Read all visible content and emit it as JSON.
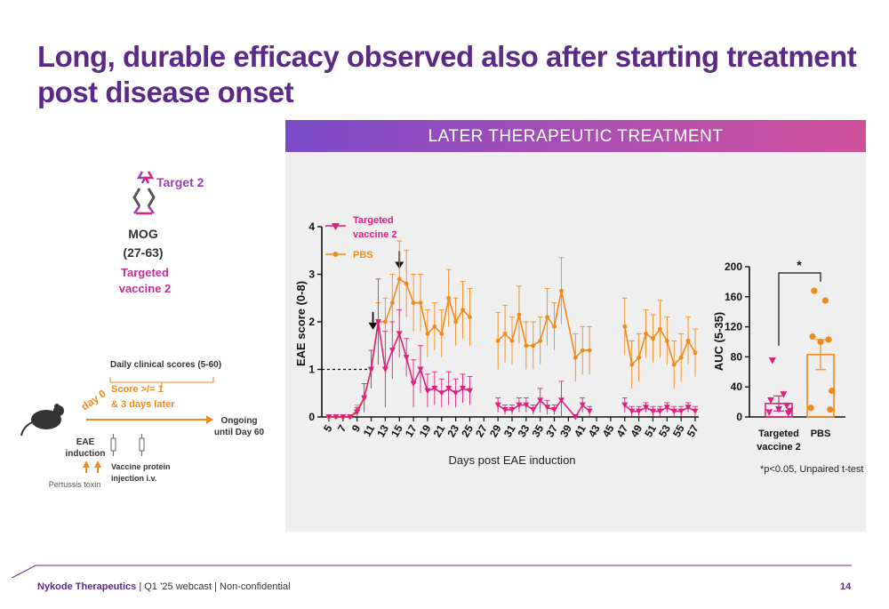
{
  "slide": {
    "title_line1": "Long, durable efficacy observed also after starting treatment",
    "title_line2": "post disease onset",
    "banner": "LATER THERAPEUTIC TREATMENT",
    "footer_company": "Nykode Therapeutics",
    "footer_rest": " | Q1 ’25 webcast | Non-confidential",
    "page_number": "14",
    "colors": {
      "title": "#5b2a86",
      "targeted": "#e0207f",
      "pbs": "#f28a1a",
      "accent": "#9b3fb0"
    }
  },
  "construct": {
    "target": "Target 2",
    "antigen": "MOG",
    "antigen_range": "(27-63)",
    "vaccine_line1": "Targeted",
    "vaccine_line2": "vaccine 2",
    "icon": "vaccine-construct-icon"
  },
  "timeline": {
    "daily_scores": "Daily clinical scores (5-60)",
    "day0": "day 0",
    "score_line1": "Score >/= 1",
    "score_line2": "& 3 days later",
    "ongoing_line1": "Ongoing",
    "ongoing_line2": "until Day 60",
    "eae_line1": "EAE",
    "eae_line2": "induction",
    "pertussis": "Pertussis toxin",
    "vaccine_line1": "Vaccine protein",
    "vaccine_line2": "injection i.v.",
    "mouse_icon": "mouse-icon",
    "syringe_icon": "syringe-icon"
  },
  "chart_data": [
    {
      "type": "line",
      "xlabel": "Days post EAE induction",
      "ylabel": "EAE score (0-8)",
      "ylim": [
        0,
        4
      ],
      "yticks": [
        "0",
        "1",
        "2",
        "3",
        "4"
      ],
      "xticks": [
        "5",
        "7",
        "9",
        "11",
        "13",
        "15",
        "17",
        "19",
        "21",
        "23",
        "25",
        "27",
        "29",
        "31",
        "33",
        "35",
        "37",
        "39",
        "41",
        "43",
        "45",
        "47",
        "49",
        "51",
        "53",
        "55",
        "57"
      ],
      "reference_line": 1,
      "treatment_arrows": [
        11,
        15
      ],
      "legend_placement": "top-left",
      "series": [
        {
          "name_line1": "Targeted",
          "name_line2": "vaccine 2",
          "color": "#e0207f",
          "marker": "triangle-down",
          "points": [
            {
              "x": 5,
              "y": 0,
              "err": 0
            },
            {
              "x": 6,
              "y": 0,
              "err": 0
            },
            {
              "x": 7,
              "y": 0,
              "err": 0
            },
            {
              "x": 8,
              "y": 0,
              "err": 0
            },
            {
              "x": 9,
              "y": 0.1,
              "err": 0.1
            },
            {
              "x": 10,
              "y": 0.4,
              "err": 0.3
            },
            {
              "x": 11,
              "y": 1.0,
              "err": 0.4
            },
            {
              "x": 12,
              "y": 2.0,
              "err": 0.9
            },
            {
              "x": 13,
              "y": 1.0,
              "err": 0.8
            },
            {
              "x": 14,
              "y": 1.4,
              "err": 0.6
            },
            {
              "x": 15,
              "y": 1.75,
              "err": 0.5
            },
            {
              "x": 16,
              "y": 1.25,
              "err": 0.4
            },
            {
              "x": 17,
              "y": 0.7,
              "err": 0.5
            },
            {
              "x": 18,
              "y": 1.0,
              "err": 0.5
            },
            {
              "x": 19,
              "y": 0.55,
              "err": 0.35
            },
            {
              "x": 20,
              "y": 0.6,
              "err": 0.35
            },
            {
              "x": 21,
              "y": 0.5,
              "err": 0.3
            },
            {
              "x": 22,
              "y": 0.6,
              "err": 0.35
            },
            {
              "x": 23,
              "y": 0.5,
              "err": 0.3
            },
            {
              "x": 24,
              "y": 0.6,
              "err": 0.3
            },
            {
              "x": 25,
              "y": 0.55,
              "err": 0.3
            },
            {
              "x": 29,
              "y": 0.25,
              "err": 0.15
            },
            {
              "x": 30,
              "y": 0.15,
              "err": 0.1
            },
            {
              "x": 31,
              "y": 0.15,
              "err": 0.1
            },
            {
              "x": 32,
              "y": 0.25,
              "err": 0.15
            },
            {
              "x": 33,
              "y": 0.25,
              "err": 0.15
            },
            {
              "x": 34,
              "y": 0.15,
              "err": 0.1
            },
            {
              "x": 35,
              "y": 0.35,
              "err": 0.25
            },
            {
              "x": 36,
              "y": 0.2,
              "err": 0.15
            },
            {
              "x": 37,
              "y": 0.15,
              "err": 0.1
            },
            {
              "x": 38,
              "y": 0.35,
              "err": 0.4
            },
            {
              "x": 40,
              "y": 0.0,
              "err": 0
            },
            {
              "x": 41,
              "y": 0.25,
              "err": 0.15
            },
            {
              "x": 42,
              "y": 0.12,
              "err": 0.1
            },
            {
              "x": 47,
              "y": 0.25,
              "err": 0.15
            },
            {
              "x": 48,
              "y": 0.12,
              "err": 0.1
            },
            {
              "x": 49,
              "y": 0.12,
              "err": 0.1
            },
            {
              "x": 50,
              "y": 0.2,
              "err": 0.1
            },
            {
              "x": 51,
              "y": 0.12,
              "err": 0.1
            },
            {
              "x": 52,
              "y": 0.12,
              "err": 0.1
            },
            {
              "x": 53,
              "y": 0.2,
              "err": 0.1
            },
            {
              "x": 54,
              "y": 0.12,
              "err": 0.1
            },
            {
              "x": 55,
              "y": 0.12,
              "err": 0.1
            },
            {
              "x": 56,
              "y": 0.2,
              "err": 0.1
            },
            {
              "x": 57,
              "y": 0.12,
              "err": 0.1
            }
          ]
        },
        {
          "name": "PBS",
          "color": "#f28a1a",
          "marker": "circle",
          "points": [
            {
              "x": 5,
              "y": 0,
              "err": 0
            },
            {
              "x": 6,
              "y": 0,
              "err": 0
            },
            {
              "x": 7,
              "y": 0,
              "err": 0
            },
            {
              "x": 8,
              "y": 0,
              "err": 0
            },
            {
              "x": 9,
              "y": 0.15,
              "err": 0.1
            },
            {
              "x": 10,
              "y": 0.4,
              "err": 0.3
            },
            {
              "x": 11,
              "y": 1.0,
              "err": 0.4
            },
            {
              "x": 12,
              "y": 2.0,
              "err": 0.4
            },
            {
              "x": 13,
              "y": 2.0,
              "err": 0.5
            },
            {
              "x": 14,
              "y": 2.4,
              "err": 0.6
            },
            {
              "x": 15,
              "y": 2.9,
              "err": 0.8
            },
            {
              "x": 16,
              "y": 2.8,
              "err": 0.7
            },
            {
              "x": 17,
              "y": 2.4,
              "err": 0.6
            },
            {
              "x": 18,
              "y": 2.4,
              "err": 0.6
            },
            {
              "x": 19,
              "y": 1.75,
              "err": 0.5
            },
            {
              "x": 20,
              "y": 1.9,
              "err": 0.5
            },
            {
              "x": 21,
              "y": 1.75,
              "err": 0.5
            },
            {
              "x": 22,
              "y": 2.5,
              "err": 0.6
            },
            {
              "x": 23,
              "y": 2.0,
              "err": 0.5
            },
            {
              "x": 24,
              "y": 2.25,
              "err": 0.6
            },
            {
              "x": 25,
              "y": 2.1,
              "err": 0.6
            },
            {
              "x": 29,
              "y": 1.6,
              "err": 0.6
            },
            {
              "x": 30,
              "y": 1.75,
              "err": 0.6
            },
            {
              "x": 31,
              "y": 1.6,
              "err": 0.5
            },
            {
              "x": 32,
              "y": 2.15,
              "err": 0.6
            },
            {
              "x": 33,
              "y": 1.5,
              "err": 0.5
            },
            {
              "x": 34,
              "y": 1.5,
              "err": 0.5
            },
            {
              "x": 35,
              "y": 1.6,
              "err": 0.5
            },
            {
              "x": 36,
              "y": 2.1,
              "err": 0.6
            },
            {
              "x": 37,
              "y": 1.9,
              "err": 0.5
            },
            {
              "x": 38,
              "y": 2.65,
              "err": 0.7
            },
            {
              "x": 40,
              "y": 1.25,
              "err": 0.5
            },
            {
              "x": 41,
              "y": 1.4,
              "err": 0.5
            },
            {
              "x": 42,
              "y": 1.4,
              "err": 0.5
            },
            {
              "x": 47,
              "y": 1.9,
              "err": 0.6
            },
            {
              "x": 48,
              "y": 1.1,
              "err": 0.5
            },
            {
              "x": 49,
              "y": 1.25,
              "err": 0.5
            },
            {
              "x": 50,
              "y": 1.75,
              "err": 0.5
            },
            {
              "x": 51,
              "y": 1.65,
              "err": 0.5
            },
            {
              "x": 52,
              "y": 1.85,
              "err": 0.6
            },
            {
              "x": 53,
              "y": 1.6,
              "err": 0.5
            },
            {
              "x": 54,
              "y": 1.1,
              "err": 0.5
            },
            {
              "x": 55,
              "y": 1.25,
              "err": 0.5
            },
            {
              "x": 56,
              "y": 1.6,
              "err": 0.5
            },
            {
              "x": 57,
              "y": 1.35,
              "err": 0.5
            }
          ]
        }
      ]
    },
    {
      "type": "bar",
      "ylabel": "AUC (5-35)",
      "ylim": [
        0,
        200
      ],
      "yticks": [
        "0",
        "40",
        "80",
        "120",
        "160",
        "200"
      ],
      "significance": "*",
      "footnote": "*p<0.05, Unpaired t-test",
      "categories": [
        {
          "label_line1": "Targeted",
          "label_line2": "vaccine 2",
          "mean": 18,
          "sem": 10,
          "color": "#e0207f",
          "marker": "triangle-down",
          "points": [
            75,
            30,
            22,
            15,
            10,
            8,
            6,
            5
          ]
        },
        {
          "label_line1": "PBS",
          "label_line2": "",
          "mean": 83,
          "sem": 20,
          "color": "#f28a1a",
          "marker": "circle",
          "points": [
            168,
            155,
            107,
            103,
            100,
            35,
            12,
            10
          ]
        }
      ]
    }
  ]
}
